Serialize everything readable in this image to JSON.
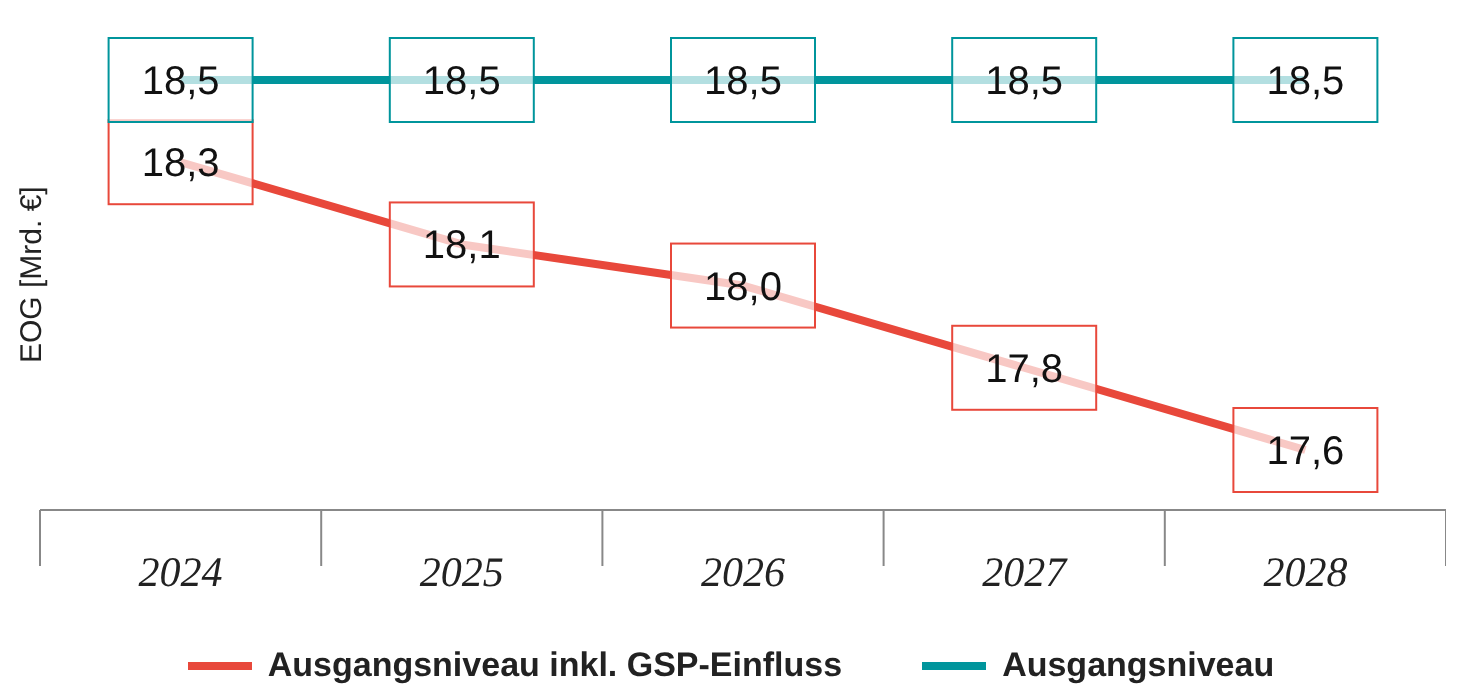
{
  "chart_data": {
    "type": "line",
    "ylabel": "EOG [Mrd. €]",
    "categories": [
      "2024",
      "2025",
      "2026",
      "2027",
      "2028"
    ],
    "series": [
      {
        "name": "Ausgangsniveau inkl. GSP-Einfluss",
        "color": "#e8483b",
        "values": [
          18.3,
          18.1,
          18.0,
          17.8,
          17.6
        ],
        "value_labels": [
          "18,3",
          "18,1",
          "18,0",
          "17,8",
          "17,6"
        ]
      },
      {
        "name": "Ausgangsniveau",
        "color": "#00959c",
        "values": [
          18.5,
          18.5,
          18.5,
          18.5,
          18.5
        ],
        "value_labels": [
          "18,5",
          "18,5",
          "18,5",
          "18,5",
          "18,5"
        ]
      }
    ],
    "legend": "bottom",
    "line_style": "solid"
  }
}
